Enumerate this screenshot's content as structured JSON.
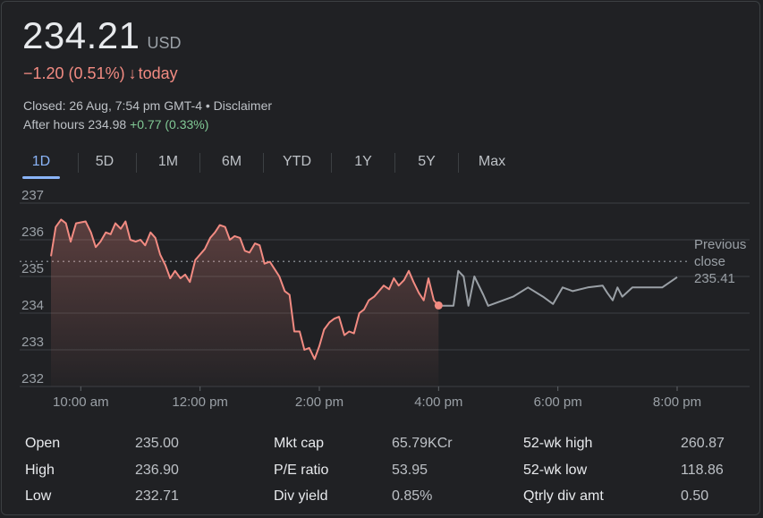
{
  "header": {
    "price": "234.21",
    "currency": "USD",
    "change_text": "−1.20 (0.51%)",
    "change_arrow": "↓",
    "change_period": "today",
    "closed_text": "Closed: 26 Aug, 7:54 pm GMT-4 • Disclaimer",
    "after_hours_prefix": "After hours 234.98",
    "after_hours_change": "+0.77 (0.33%)"
  },
  "tabs": [
    {
      "label": "1D",
      "active": true
    },
    {
      "label": "5D",
      "active": false
    },
    {
      "label": "1M",
      "active": false
    },
    {
      "label": "6M",
      "active": false
    },
    {
      "label": "YTD",
      "active": false
    },
    {
      "label": "1Y",
      "active": false
    },
    {
      "label": "5Y",
      "active": false
    },
    {
      "label": "Max",
      "active": false
    }
  ],
  "colors": {
    "down": "#f28b82",
    "up": "#81c995",
    "after_hours_line": "#9aa0a6",
    "accent": "#8ab4f8"
  },
  "chart_data": {
    "type": "line",
    "y_ticks": [
      "237",
      "236",
      "235",
      "234",
      "233",
      "232"
    ],
    "ylim": [
      232,
      237
    ],
    "x_ticks": [
      "10:00 am",
      "12:00 pm",
      "2:00 pm",
      "4:00 pm",
      "6:00 pm",
      "8:00 pm"
    ],
    "x_tick_hours": [
      10,
      12,
      14,
      16,
      18,
      20
    ],
    "xlim_hours": [
      9.5,
      20.0
    ],
    "previous_close": {
      "label_1": "Previous",
      "label_2": "close",
      "value": 235.41,
      "value_text": "235.41"
    },
    "series": [
      {
        "session": "regular",
        "points": [
          [
            9.5,
            235.55
          ],
          [
            9.58,
            236.35
          ],
          [
            9.67,
            236.55
          ],
          [
            9.75,
            236.45
          ],
          [
            9.83,
            235.95
          ],
          [
            9.92,
            236.45
          ],
          [
            10.08,
            236.5
          ],
          [
            10.17,
            236.2
          ],
          [
            10.25,
            235.8
          ],
          [
            10.33,
            235.95
          ],
          [
            10.42,
            236.2
          ],
          [
            10.5,
            236.15
          ],
          [
            10.58,
            236.45
          ],
          [
            10.67,
            236.3
          ],
          [
            10.75,
            236.5
          ],
          [
            10.83,
            236.0
          ],
          [
            10.92,
            235.95
          ],
          [
            11.0,
            236.0
          ],
          [
            11.08,
            235.85
          ],
          [
            11.17,
            236.2
          ],
          [
            11.25,
            236.05
          ],
          [
            11.33,
            235.6
          ],
          [
            11.42,
            235.3
          ],
          [
            11.5,
            234.95
          ],
          [
            11.58,
            235.15
          ],
          [
            11.67,
            234.95
          ],
          [
            11.75,
            235.05
          ],
          [
            11.83,
            234.85
          ],
          [
            11.92,
            235.45
          ],
          [
            12.08,
            235.75
          ],
          [
            12.17,
            236.05
          ],
          [
            12.25,
            236.2
          ],
          [
            12.33,
            236.4
          ],
          [
            12.42,
            236.35
          ],
          [
            12.5,
            236.0
          ],
          [
            12.58,
            236.1
          ],
          [
            12.67,
            236.05
          ],
          [
            12.75,
            235.7
          ],
          [
            12.83,
            235.65
          ],
          [
            12.92,
            235.9
          ],
          [
            13.0,
            235.85
          ],
          [
            13.08,
            235.35
          ],
          [
            13.17,
            235.4
          ],
          [
            13.25,
            235.2
          ],
          [
            13.33,
            235.0
          ],
          [
            13.42,
            234.6
          ],
          [
            13.5,
            234.5
          ],
          [
            13.58,
            233.5
          ],
          [
            13.67,
            233.5
          ],
          [
            13.75,
            233.0
          ],
          [
            13.83,
            233.05
          ],
          [
            13.92,
            232.75
          ],
          [
            14.0,
            233.1
          ],
          [
            14.08,
            233.55
          ],
          [
            14.17,
            233.75
          ],
          [
            14.25,
            233.85
          ],
          [
            14.33,
            233.9
          ],
          [
            14.42,
            233.4
          ],
          [
            14.5,
            233.5
          ],
          [
            14.58,
            233.45
          ],
          [
            14.67,
            234.0
          ],
          [
            14.75,
            234.1
          ],
          [
            14.83,
            234.35
          ],
          [
            14.92,
            234.45
          ],
          [
            15.0,
            234.6
          ],
          [
            15.08,
            234.75
          ],
          [
            15.17,
            234.65
          ],
          [
            15.25,
            234.95
          ],
          [
            15.33,
            234.75
          ],
          [
            15.42,
            234.9
          ],
          [
            15.5,
            235.15
          ],
          [
            15.58,
            234.85
          ],
          [
            15.67,
            234.55
          ],
          [
            15.75,
            234.35
          ],
          [
            15.83,
            234.95
          ],
          [
            15.92,
            234.35
          ],
          [
            16.0,
            234.21
          ]
        ]
      },
      {
        "session": "after_hours",
        "points": [
          [
            16.0,
            234.21
          ],
          [
            16.08,
            234.2
          ],
          [
            16.25,
            234.2
          ],
          [
            16.33,
            235.15
          ],
          [
            16.42,
            235.0
          ],
          [
            16.5,
            234.2
          ],
          [
            16.6,
            235.0
          ],
          [
            16.75,
            234.5
          ],
          [
            16.83,
            234.2
          ],
          [
            17.0,
            234.3
          ],
          [
            17.25,
            234.45
          ],
          [
            17.5,
            234.7
          ],
          [
            17.75,
            234.45
          ],
          [
            17.92,
            234.25
          ],
          [
            18.08,
            234.7
          ],
          [
            18.25,
            234.6
          ],
          [
            18.5,
            234.7
          ],
          [
            18.75,
            234.75
          ],
          [
            18.83,
            234.55
          ],
          [
            18.92,
            234.35
          ],
          [
            19.0,
            234.7
          ],
          [
            19.08,
            234.45
          ],
          [
            19.25,
            234.7
          ],
          [
            19.5,
            234.7
          ],
          [
            19.75,
            234.7
          ],
          [
            20.0,
            234.98
          ]
        ]
      }
    ]
  },
  "stats": [
    {
      "label": "Open",
      "value": "235.00"
    },
    {
      "label": "High",
      "value": "236.90"
    },
    {
      "label": "Low",
      "value": "232.71"
    },
    {
      "label": "Mkt cap",
      "value": "65.79KCr"
    },
    {
      "label": "P/E ratio",
      "value": "53.95"
    },
    {
      "label": "Div yield",
      "value": "0.85%"
    },
    {
      "label": "52-wk high",
      "value": "260.87"
    },
    {
      "label": "52-wk low",
      "value": "118.86"
    },
    {
      "label": "Qtrly div amt",
      "value": "0.50"
    }
  ]
}
